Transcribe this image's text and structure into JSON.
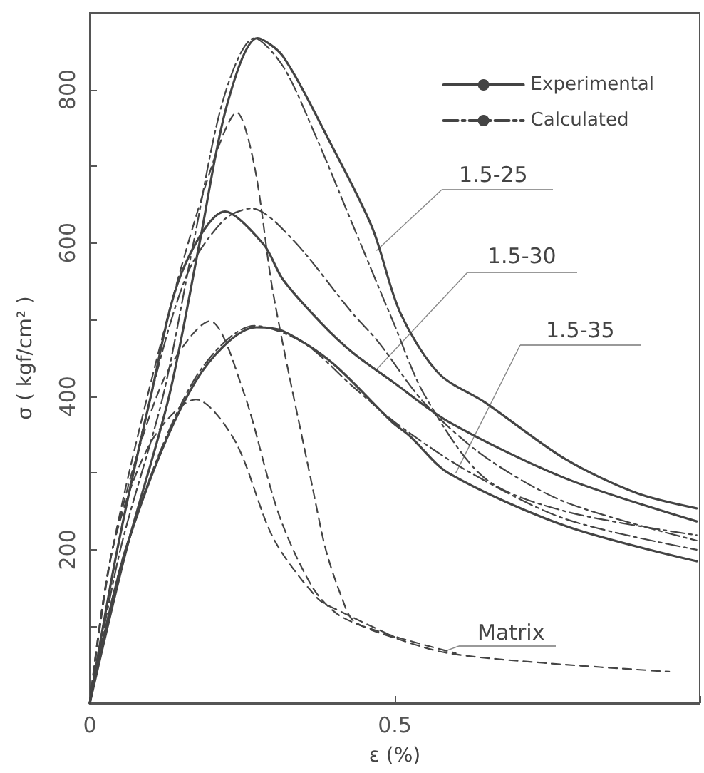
{
  "chart_data": {
    "type": "line",
    "xlabel": "ε (%)",
    "ylabel": "σ ( kgf/cm² )",
    "xlim": [
      0,
      1
    ],
    "xticks": [
      0,
      0.5,
      {
        "value": 1,
        "label": null
      }
    ],
    "ylim": [
      0,
      900
    ],
    "yticks": [
      {
        "value": 0,
        "label": null
      },
      {
        "value": 100,
        "label": null
      },
      200,
      {
        "value": 300,
        "label": null
      },
      400,
      {
        "value": 500,
        "label": null
      },
      600,
      {
        "value": 700,
        "label": null
      },
      800
    ],
    "grid": false,
    "legend": "top right",
    "marker": "none",
    "annotations": [
      {
        "text": "1.5-25",
        "x": 0.47,
        "y": 590
      },
      {
        "text": "1.5-30",
        "x": 0.47,
        "y": 435
      },
      {
        "text": "1.5-35",
        "x": 0.6,
        "y": 300
      },
      {
        "text": "Matrix",
        "x": 0.58,
        "y": 67
      }
    ],
    "series": [
      {
        "name": "Experimental",
        "color": "#444444",
        "line_style": "solid",
        "x": [
          0,
          0.06,
          0.13,
          0.18,
          0.225,
          0.275,
          0.317,
          0.394,
          0.463,
          0.509,
          0.572,
          0.648,
          0.78,
          0.896,
          0.995
        ],
        "values": [
          0,
          200,
          400,
          600,
          780,
          867,
          843,
          731,
          620,
          509,
          430,
          392,
          318,
          274,
          254
        ]
      },
      {
        "name": "Calculated",
        "color": "#444444",
        "line_style": "dashdot",
        "x": [
          0,
          0.05,
          0.12,
          0.17,
          0.22,
          0.27,
          0.317,
          0.37,
          0.433,
          0.498,
          0.55,
          0.648,
          0.78,
          0.995
        ],
        "values": [
          0,
          200,
          400,
          600,
          790,
          867,
          830,
          740,
          620,
          496,
          400,
          293,
          250,
          219
        ]
      },
      {
        "color": "#444444",
        "line_style": "solid",
        "x": [
          0,
          0.045,
          0.1,
          0.15,
          0.222,
          0.285,
          0.317,
          0.38,
          0.431,
          0.495,
          0.588,
          0.78,
          0.995
        ],
        "values": [
          0,
          200,
          400,
          560,
          641,
          598,
          552,
          495,
          457,
          420,
          367,
          293,
          237
        ]
      },
      {
        "color": "#444444",
        "line_style": "dashdot",
        "x": [
          0,
          0.045,
          0.1,
          0.16,
          0.22,
          0.265,
          0.333,
          0.431,
          0.472,
          0.55,
          0.65,
          0.78,
          0.995
        ],
        "values": [
          0,
          200,
          400,
          560,
          630,
          645,
          604,
          508,
          472,
          390,
          320,
          262,
          212
        ]
      },
      {
        "color": "#444444",
        "line_style": "solid",
        "x": [
          0,
          0.062,
          0.173,
          0.273,
          0.317,
          0.397,
          0.495,
          0.525,
          0.588,
          0.78,
          0.995
        ],
        "values": [
          0,
          208,
          419,
          490,
          485,
          444,
          367,
          348,
          300,
          231,
          185
        ]
      },
      {
        "color": "#444444",
        "line_style": "dashdot",
        "x": [
          0,
          0.06,
          0.17,
          0.27,
          0.35,
          0.431,
          0.509,
          0.625,
          0.78,
          0.995
        ],
        "values": [
          0,
          205,
          420,
          492,
          470,
          413,
          361,
          300,
          240,
          200
        ]
      },
      {
        "color": "#444444",
        "line_style": "dashed",
        "x": [
          0,
          0.037,
          0.12,
          0.2,
          0.241,
          0.27,
          0.301,
          0.366,
          0.387,
          0.412,
          0.433,
          0.5,
          0.588,
          0.75,
          0.95
        ],
        "values": [
          0,
          200,
          480,
          700,
          770,
          700,
          533,
          278,
          200,
          140,
          107,
          85,
          65,
          52,
          41
        ]
      },
      {
        "color": "#444444",
        "line_style": "dashed",
        "x": [
          0,
          0.037,
          0.12,
          0.197,
          0.252,
          0.31,
          0.366,
          0.412,
          0.5,
          0.6
        ],
        "values": [
          0,
          200,
          420,
          498,
          406,
          246,
          150,
          113,
          87,
          65
        ]
      },
      {
        "color": "#444444",
        "line_style": "dashed",
        "x": [
          0,
          0.037,
          0.1,
          0.174,
          0.238,
          0.301,
          0.373,
          0.41,
          0.5
        ],
        "values": [
          0,
          200,
          340,
          396,
          342,
          215,
          137,
          120,
          86
        ]
      }
    ]
  }
}
